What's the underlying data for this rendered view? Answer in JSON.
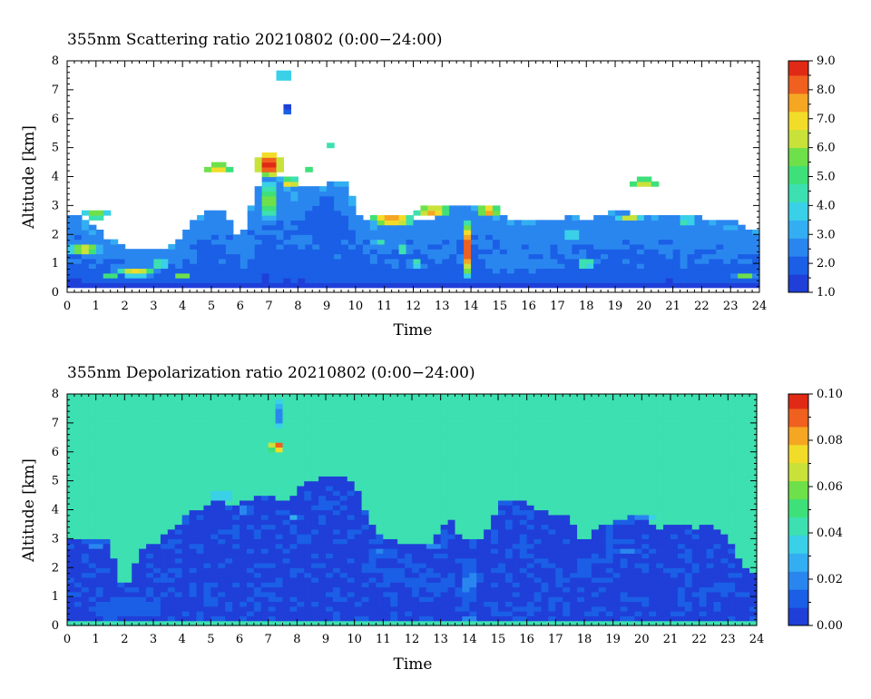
{
  "colormap": [
    "#1f3fd8",
    "#1a5fe6",
    "#2a86ef",
    "#33aef2",
    "#3ad0e8",
    "#3de0b0",
    "#3ee07a",
    "#6ee04a",
    "#c8e23a",
    "#f2dc2a",
    "#f5a623",
    "#f0601e",
    "#e02a16"
  ],
  "chart_data": [
    {
      "type": "heatmap",
      "title": "355nm Scattering ratio  20210802 (0:00−24:00)",
      "xlabel": "Time",
      "ylabel": "Altitude [km]",
      "xlim": [
        0,
        24
      ],
      "ylim": [
        0,
        8
      ],
      "x_ticks": [
        "0",
        "1",
        "2",
        "3",
        "4",
        "5",
        "6",
        "7",
        "8",
        "9",
        "10",
        "11",
        "12",
        "13",
        "14",
        "15",
        "16",
        "17",
        "18",
        "19",
        "20",
        "21",
        "22",
        "23",
        "24"
      ],
      "y_ticks": [
        "0",
        "1",
        "2",
        "3",
        "4",
        "5",
        "6",
        "7",
        "8"
      ],
      "colorbar": {
        "min": 1.0,
        "max": 9.0,
        "ticks": [
          "1.0",
          "2.0",
          "3.0",
          "4.0",
          "5.0",
          "6.0",
          "7.0",
          "8.0",
          "9.0"
        ]
      },
      "background": "#ffffff",
      "cloud_top_km": [
        [
          0,
          2.7
        ],
        [
          0.5,
          2.6
        ],
        [
          1,
          2.2
        ],
        [
          1.5,
          1.8
        ],
        [
          2,
          1.6
        ],
        [
          2.5,
          1.5
        ],
        [
          3,
          1.5
        ],
        [
          3.5,
          1.6
        ],
        [
          4,
          2.0
        ],
        [
          4.5,
          2.7
        ],
        [
          5,
          2.8
        ],
        [
          5.5,
          2.8
        ],
        [
          6,
          1.8
        ],
        [
          6.5,
          3.3
        ],
        [
          7,
          4.6
        ],
        [
          7.5,
          3.7
        ],
        [
          8,
          3.7
        ],
        [
          9,
          3.75
        ],
        [
          9.8,
          3.75
        ],
        [
          10,
          2.6
        ],
        [
          11,
          2.5
        ],
        [
          12,
          2.6
        ],
        [
          12.5,
          2.4
        ],
        [
          13,
          2.8
        ],
        [
          13.5,
          3.0
        ],
        [
          14,
          3.1
        ],
        [
          14.5,
          2.8
        ],
        [
          15,
          2.6
        ],
        [
          16,
          2.5
        ],
        [
          17,
          2.5
        ],
        [
          17.5,
          2.7
        ],
        [
          18,
          2.4
        ],
        [
          18.5,
          2.7
        ],
        [
          19,
          2.8
        ],
        [
          20,
          2.7
        ],
        [
          21,
          2.7
        ],
        [
          22,
          2.6
        ],
        [
          23,
          2.4
        ],
        [
          23.8,
          2.2
        ]
      ],
      "cloud_base_km": 0.35,
      "features": [
        {
          "x": 7.0,
          "y": 4.4,
          "sx": 0.45,
          "sy": 0.5,
          "v": 9.0
        },
        {
          "x": 7.0,
          "y": 3.2,
          "sx": 0.25,
          "sy": 0.8,
          "v": 6.5
        },
        {
          "x": 13.9,
          "y": 1.5,
          "sx": 0.18,
          "sy": 1.1,
          "v": 8.5
        },
        {
          "x": 14.6,
          "y": 2.8,
          "sx": 0.35,
          "sy": 0.2,
          "v": 8.0
        },
        {
          "x": 11.3,
          "y": 2.5,
          "sx": 0.8,
          "sy": 0.2,
          "v": 8.0
        },
        {
          "x": 12.7,
          "y": 2.8,
          "sx": 0.6,
          "sy": 0.18,
          "v": 7.5
        },
        {
          "x": 5.2,
          "y": 4.3,
          "sx": 0.5,
          "sy": 0.15,
          "v": 7.5
        },
        {
          "x": 7.7,
          "y": 3.8,
          "sx": 0.35,
          "sy": 0.15,
          "v": 7.0
        },
        {
          "x": 20.0,
          "y": 3.8,
          "sx": 0.5,
          "sy": 0.15,
          "v": 7.0
        },
        {
          "x": 19.5,
          "y": 2.6,
          "sx": 0.45,
          "sy": 0.15,
          "v": 6.5
        },
        {
          "x": 21.5,
          "y": 2.5,
          "sx": 0.35,
          "sy": 0.12,
          "v": 6.0
        },
        {
          "x": 1.0,
          "y": 2.7,
          "sx": 0.4,
          "sy": 0.15,
          "v": 6.0
        },
        {
          "x": 0.6,
          "y": 1.5,
          "sx": 0.7,
          "sy": 0.18,
          "v": 7.0
        },
        {
          "x": 2.4,
          "y": 0.7,
          "sx": 0.8,
          "sy": 0.15,
          "v": 7.5
        },
        {
          "x": 3.2,
          "y": 1.0,
          "sx": 0.45,
          "sy": 0.12,
          "v": 6.5
        },
        {
          "x": 4.0,
          "y": 0.6,
          "sx": 0.35,
          "sy": 0.1,
          "v": 6.0
        },
        {
          "x": 1.5,
          "y": 0.6,
          "sx": 0.3,
          "sy": 0.1,
          "v": 5.5
        },
        {
          "x": 12.1,
          "y": 1.0,
          "sx": 0.35,
          "sy": 0.12,
          "v": 6.0
        },
        {
          "x": 18.0,
          "y": 1.0,
          "sx": 0.4,
          "sy": 0.12,
          "v": 7.0
        },
        {
          "x": 23.5,
          "y": 0.6,
          "sx": 0.4,
          "sy": 0.12,
          "v": 6.0
        },
        {
          "x": 7.5,
          "y": 7.5,
          "sx": 0.15,
          "sy": 0.4,
          "v": 5.0
        },
        {
          "x": 7.6,
          "y": 6.3,
          "sx": 0.08,
          "sy": 0.15,
          "v": 2.0
        },
        {
          "x": 9.1,
          "y": 5.1,
          "sx": 0.2,
          "sy": 0.08,
          "v": 4.5
        },
        {
          "x": 8.4,
          "y": 4.2,
          "sx": 0.25,
          "sy": 0.1,
          "v": 5.5
        },
        {
          "x": 10.8,
          "y": 1.8,
          "sx": 0.25,
          "sy": 0.12,
          "v": 5.0
        },
        {
          "x": 11.7,
          "y": 1.5,
          "sx": 0.2,
          "sy": 0.2,
          "v": 5.0
        },
        {
          "x": 17.5,
          "y": 2.0,
          "sx": 0.25,
          "sy": 0.2,
          "v": 4.5
        },
        {
          "x": 23.0,
          "y": 2.3,
          "sx": 0.3,
          "sy": 0.15,
          "v": 3.5
        },
        {
          "x": 15.5,
          "y": 1.0,
          "sx": 2.0,
          "sy": 0.5,
          "v": 2.3
        },
        {
          "x": 4.8,
          "y": 1.5,
          "sx": 1.0,
          "sy": 0.8,
          "v": 2.2
        },
        {
          "x": 9.0,
          "y": 2.5,
          "sx": 1.0,
          "sy": 1.0,
          "v": 2.0
        }
      ]
    },
    {
      "type": "heatmap",
      "title": "355nm Depolarization ratio  20210802 (0:00−24:00)",
      "xlabel": "Time",
      "ylabel": "Altitude [km]",
      "xlim": [
        0,
        24
      ],
      "ylim": [
        0,
        8
      ],
      "x_ticks": [
        "0",
        "1",
        "2",
        "3",
        "4",
        "5",
        "6",
        "7",
        "8",
        "9",
        "10",
        "11",
        "12",
        "13",
        "14",
        "15",
        "16",
        "17",
        "18",
        "19",
        "20",
        "21",
        "22",
        "23",
        "24"
      ],
      "y_ticks": [
        "0",
        "1",
        "2",
        "3",
        "4",
        "5",
        "6",
        "7",
        "8"
      ],
      "colorbar": {
        "min": 0.0,
        "max": 0.1,
        "ticks": [
          "0.00",
          "0.02",
          "0.04",
          "0.06",
          "0.08",
          "0.10"
        ]
      },
      "background_value": 0.04,
      "cloud_top_km": [
        [
          0,
          2.9
        ],
        [
          0.5,
          3.0
        ],
        [
          1,
          2.9
        ],
        [
          1.5,
          3.0
        ],
        [
          1.8,
          1.5
        ],
        [
          2.2,
          1.4
        ],
        [
          2.5,
          2.6
        ],
        [
          3,
          2.8
        ],
        [
          3.5,
          3.2
        ],
        [
          4,
          3.7
        ],
        [
          4.5,
          4.0
        ],
        [
          5,
          4.3
        ],
        [
          6,
          4.2
        ],
        [
          6.5,
          4.4
        ],
        [
          7,
          4.5
        ],
        [
          7.5,
          4.2
        ],
        [
          8,
          4.7
        ],
        [
          8.5,
          5.0
        ],
        [
          9,
          5.2
        ],
        [
          9.5,
          5.2
        ],
        [
          10,
          5.0
        ],
        [
          10.5,
          3.7
        ],
        [
          11,
          3.0
        ],
        [
          12,
          2.8
        ],
        [
          12.5,
          2.8
        ],
        [
          13,
          3.2
        ],
        [
          13.3,
          3.8
        ],
        [
          13.7,
          3.0
        ],
        [
          14.5,
          3.0
        ],
        [
          15,
          4.2
        ],
        [
          15.5,
          4.4
        ],
        [
          16,
          4.3
        ],
        [
          16.5,
          4.0
        ],
        [
          17,
          3.8
        ],
        [
          17.5,
          3.8
        ],
        [
          18,
          2.8
        ],
        [
          18.5,
          3.5
        ],
        [
          19,
          3.6
        ],
        [
          20,
          3.9
        ],
        [
          20.5,
          3.3
        ],
        [
          21,
          3.5
        ],
        [
          22,
          3.4
        ],
        [
          22.5,
          3.5
        ],
        [
          23,
          3.0
        ],
        [
          23.5,
          2.0
        ],
        [
          24,
          1.8
        ]
      ],
      "features": [
        {
          "x": 7.3,
          "y": 6.2,
          "sx": 0.25,
          "sy": 0.2,
          "v": 0.1
        },
        {
          "x": 7.3,
          "y": 7.3,
          "sx": 0.12,
          "sy": 0.6,
          "v": 0.0
        },
        {
          "x": 14.0,
          "y": 1.5,
          "sx": 0.2,
          "sy": 1.2,
          "v": 0.024
        },
        {
          "x": 14.0,
          "y": 0.25,
          "sx": 0.15,
          "sy": 0.1,
          "v": 0.045
        },
        {
          "x": 6.2,
          "y": 4.0,
          "sx": 0.35,
          "sy": 0.12,
          "v": 0.035
        },
        {
          "x": 7.9,
          "y": 3.7,
          "sx": 0.3,
          "sy": 0.12,
          "v": 0.03
        },
        {
          "x": 5.3,
          "y": 4.5,
          "sx": 0.6,
          "sy": 0.12,
          "v": 0.022
        },
        {
          "x": 11.0,
          "y": 2.5,
          "sx": 0.8,
          "sy": 0.12,
          "v": 0.022
        },
        {
          "x": 12.8,
          "y": 2.8,
          "sx": 0.5,
          "sy": 0.1,
          "v": 0.025
        },
        {
          "x": 19.5,
          "y": 2.6,
          "sx": 0.5,
          "sy": 0.12,
          "v": 0.02
        },
        {
          "x": 21.5,
          "y": 2.5,
          "sx": 0.35,
          "sy": 0.1,
          "v": 0.02
        },
        {
          "x": 1.0,
          "y": 2.7,
          "sx": 0.4,
          "sy": 0.12,
          "v": 0.02
        },
        {
          "x": 20.0,
          "y": 3.8,
          "sx": 0.5,
          "sy": 0.1,
          "v": 0.03
        },
        {
          "x": 2.0,
          "y": 0.6,
          "sx": 1.5,
          "sy": 0.4,
          "v": 0.012
        },
        {
          "x": 18.0,
          "y": 2.0,
          "sx": 0.3,
          "sy": 0.4,
          "v": 0.014
        },
        {
          "x": 12.0,
          "y": 1.5,
          "sx": 1.0,
          "sy": 0.8,
          "v": 0.008
        }
      ],
      "surface_layer": {
        "y": 0.05,
        "v": 0.04
      }
    }
  ]
}
